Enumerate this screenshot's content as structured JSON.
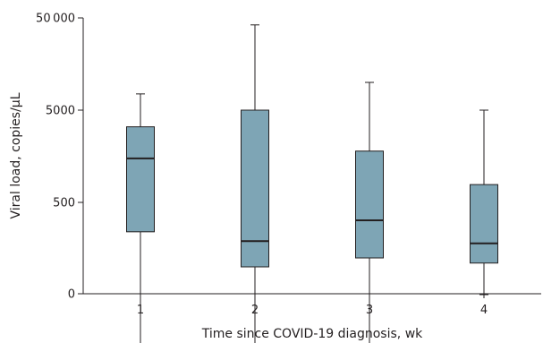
{
  "chart_data": {
    "type": "box",
    "xlabel": "Time since COVID-19 diagnosis, wk",
    "ylabel": "Viral load, copies/µL",
    "yscale": "log",
    "yticks": [
      {
        "label": "0",
        "value": 0
      },
      {
        "label": "500",
        "value": 500
      },
      {
        "label": "5000",
        "value": 5000
      },
      {
        "label": "50 000",
        "value": 50000
      }
    ],
    "categories": [
      "1",
      "2",
      "3",
      "4"
    ],
    "boxes": [
      {
        "category": "1",
        "whisker_low": 10,
        "q1": 240,
        "median": 1500,
        "q3": 3300,
        "whisker_high": 7500
      },
      {
        "category": "2",
        "whisker_low": 10,
        "q1": 100,
        "median": 190,
        "q3": 5000,
        "whisker_high": 42000
      },
      {
        "category": "3",
        "whisker_low": 11,
        "q1": 125,
        "median": 320,
        "q3": 1800,
        "whisker_high": 10000
      },
      {
        "category": "4",
        "whisker_low": 50,
        "q1": 110,
        "median": 180,
        "q3": 780,
        "whisker_high": 5000
      }
    ]
  }
}
